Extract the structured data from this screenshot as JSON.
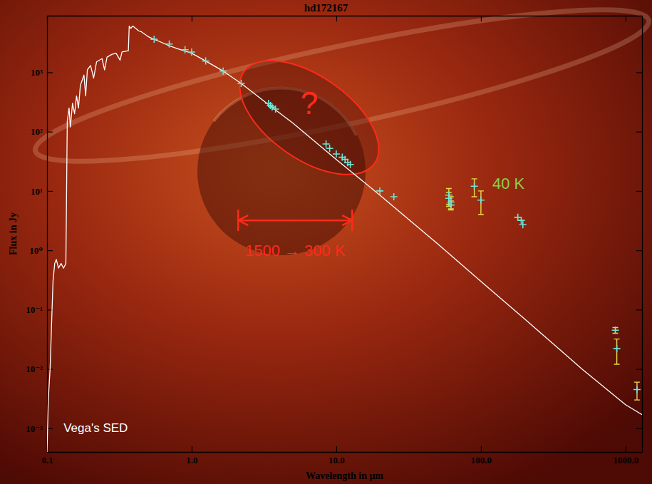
{
  "chart_data": {
    "type": "line",
    "title": "hd172167",
    "x_label": "Wavelength in μm",
    "y_label": "Flux in Jy",
    "log": true,
    "xlim": [
      0.1,
      1300
    ],
    "ylim": [
      0.0004,
      9000
    ],
    "xticks": [
      0.1,
      {
        "value": 1,
        "label": "1.0"
      },
      {
        "value": 10,
        "label": "10.0"
      },
      {
        "value": 100,
        "label": "100.0"
      },
      {
        "value": 1000,
        "label": "1000.0"
      }
    ],
    "yticks": [
      {
        "value": 0.001,
        "label": "10⁻³"
      },
      {
        "value": 0.01,
        "label": "10⁻²"
      },
      {
        "value": 0.1,
        "label": "10⁻¹"
      },
      {
        "value": 1,
        "label": "10⁰"
      },
      {
        "value": 10,
        "label": "10¹"
      },
      {
        "value": 100,
        "label": "10²"
      },
      {
        "value": 1000,
        "label": "10³"
      }
    ],
    "series": [
      {
        "type": "line",
        "color": "#ffffff",
        "x": [
          0.1,
          0.102,
          0.105,
          0.108,
          0.11,
          0.113,
          0.116,
          0.12,
          0.125,
          0.13,
          0.135,
          0.138,
          0.142,
          0.145,
          0.15,
          0.155,
          0.16,
          0.165,
          0.17,
          0.18,
          0.185,
          0.19,
          0.2,
          0.21,
          0.22,
          0.24,
          0.25,
          0.26,
          0.28,
          0.3,
          0.32,
          0.33,
          0.36,
          0.365,
          0.37,
          0.38,
          0.39,
          0.4,
          0.43,
          0.45,
          0.5,
          0.55,
          0.6,
          0.7,
          0.8,
          1,
          1.25,
          1.65,
          2.2,
          3.5,
          5,
          10,
          20,
          50,
          100,
          200,
          500,
          1000,
          1300
        ],
        "values": [
          0.0004,
          0.003,
          0.01,
          0.08,
          0.3,
          0.6,
          0.7,
          0.5,
          0.6,
          0.5,
          0.6,
          150,
          250,
          120,
          300,
          200,
          400,
          250,
          600,
          900,
          400,
          1100,
          1300,
          800,
          1500,
          1700,
          1100,
          1800,
          2000,
          2100,
          1600,
          2200,
          2300,
          2300,
          6000,
          5500,
          6000,
          5800,
          5000,
          4800,
          4000,
          3600,
          3300,
          2800,
          2500,
          2100,
          1550,
          1050,
          650,
          270,
          140,
          34,
          8.5,
          1.3,
          0.3,
          0.07,
          0.01,
          0.0025,
          0.0017
        ]
      },
      {
        "type": "scatter",
        "color": "#6ee6d8",
        "marker": "cross",
        "x": [
          0.55,
          0.7,
          0.9,
          1.0,
          1.25,
          1.65,
          2.2,
          3.4,
          3.5,
          3.6,
          3.8,
          8.5,
          9,
          10,
          11,
          11.5,
          12,
          12.5,
          20,
          25,
          60,
          60,
          62,
          62,
          90,
          100,
          180,
          190,
          195,
          850,
          870,
          1200
        ],
        "values": [
          3600,
          3000,
          2400,
          2200,
          1550,
          1050,
          650,
          300,
          275,
          260,
          240,
          62,
          52,
          42,
          37,
          34,
          30,
          28,
          10,
          8,
          8.5,
          7.5,
          6.5,
          5.8,
          12,
          7,
          3.6,
          3.2,
          2.7,
          0.045,
          0.022,
          0.0045
        ],
        "errors": [
          null,
          null,
          null,
          null,
          null,
          null,
          null,
          null,
          null,
          null,
          null,
          null,
          null,
          null,
          null,
          null,
          null,
          null,
          null,
          null,
          2.5,
          2,
          1.5,
          1,
          4,
          3,
          null,
          null,
          null,
          0.005,
          0.01,
          0.0015
        ]
      }
    ],
    "annotations": [
      {
        "text": "?",
        "x": 6.5,
        "y": 300,
        "color": "#ff2a1a"
      },
      {
        "text": "40 K",
        "x": 155,
        "y": 13.5,
        "color": "#8ccf4a"
      },
      {
        "text": "1500 → 300 K",
        "x": 5.2,
        "y": 1,
        "color": "#ff2a1a"
      },
      {
        "text": "Vega's SED",
        "x": 0.217,
        "y": 0.001,
        "color": "#ffffff"
      }
    ]
  }
}
